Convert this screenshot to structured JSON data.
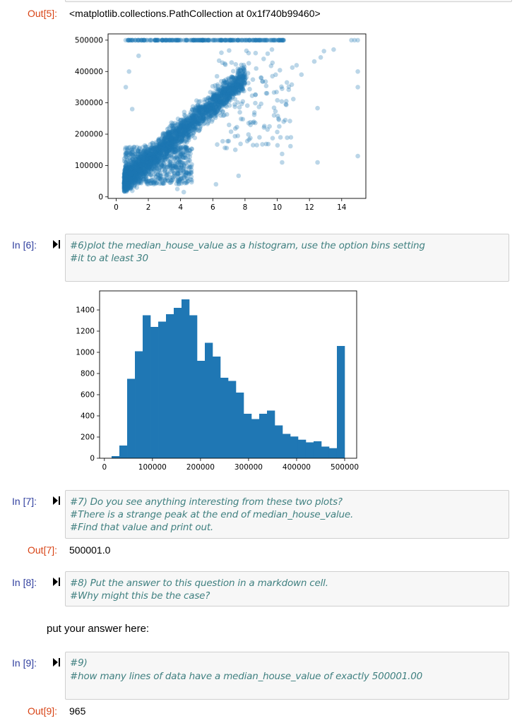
{
  "cells": {
    "out5": {
      "prompt": "Out[5]:",
      "text": "<matplotlib.collections.PathCollection at 0x1f740b99460>"
    },
    "in6": {
      "prompt": "In [6]:",
      "lines": [
        "#6)plot the median_house_value as a histogram, use the option bins setting",
        "#it to at least 30"
      ]
    },
    "in7": {
      "prompt": "In [7]:",
      "lines": [
        "#7) Do you see anything interesting from these two plots?",
        "#There is a strange peak at the end of median_house_value.",
        "#Find that value and print out."
      ]
    },
    "out7": {
      "prompt": "Out[7]:",
      "text": "500001.0"
    },
    "in8": {
      "prompt": "In [8]:",
      "lines": [
        "#8) Put the answer to this question in a markdown cell.",
        "#Why might this be the case?"
      ]
    },
    "markdown": {
      "text": "put your answer here:"
    },
    "in9": {
      "prompt": "In [9]:",
      "lines": [
        "#9)",
        "#how many lines of data have a median_house_value of exactly 500001.00"
      ]
    },
    "out9": {
      "prompt": "Out[9]:",
      "text": "965"
    }
  },
  "colors": {
    "in_prompt": "#303f9f",
    "out_prompt": "#d84315",
    "comment": "#408080",
    "plot_blue": "#1f77b4"
  },
  "chart_data": [
    {
      "type": "scatter",
      "x_ticks": [
        "0",
        "2",
        "4",
        "6",
        "8",
        "10",
        "12",
        "14"
      ],
      "y_ticks": [
        "0",
        "100000",
        "200000",
        "300000",
        "400000",
        "500000"
      ],
      "xlim": [
        -0.5,
        15.5
      ],
      "ylim": [
        -5000,
        520000
      ],
      "grid": false,
      "alpha": 0.3,
      "color": "#1f77b4",
      "outliers": [
        [
          15.0,
          130000
        ],
        [
          15.0,
          350000
        ],
        [
          15.0,
          400000
        ],
        [
          12.5,
          110000
        ],
        [
          12.5,
          283000
        ],
        [
          10.3,
          110000
        ],
        [
          10.3,
          137000
        ],
        [
          10.2,
          190000
        ],
        [
          10.0,
          207000
        ],
        [
          10.4,
          240000
        ],
        [
          10.5,
          245000
        ],
        [
          11.0,
          312000
        ],
        [
          11.5,
          390000
        ],
        [
          12.3,
          432000
        ],
        [
          12.7,
          445000
        ],
        [
          9.4,
          215000
        ],
        [
          9.2,
          226000
        ],
        [
          9.8,
          260000
        ],
        [
          10.3,
          345000
        ],
        [
          10.6,
          365000
        ],
        [
          11.2,
          420000
        ],
        [
          12.9,
          465000
        ],
        [
          13.5,
          470000
        ],
        [
          8.9,
          190000
        ],
        [
          7.6,
          67000
        ],
        [
          7.4,
          150000
        ],
        [
          8.5,
          165000
        ],
        [
          3.8,
          25000
        ],
        [
          4.2,
          15000
        ],
        [
          6.2,
          40000
        ],
        [
          9.0,
          297000
        ],
        [
          9.7,
          385000
        ],
        [
          0.8,
          400000
        ],
        [
          0.6,
          350000
        ],
        [
          1.4,
          450000
        ],
        [
          1.0,
          280000
        ],
        [
          14.6,
          500000
        ],
        [
          14.8,
          500000
        ],
        [
          15.0,
          500000
        ]
      ]
    },
    {
      "type": "bar",
      "bins": 30,
      "bin_start": 14999,
      "bin_width": 16166.73,
      "values": [
        20,
        120,
        750,
        1010,
        1350,
        1240,
        1290,
        1360,
        1420,
        1500,
        1350,
        920,
        1090,
        960,
        760,
        730,
        620,
        420,
        370,
        420,
        450,
        310,
        230,
        205,
        175,
        150,
        160,
        110,
        95,
        1060
      ],
      "x_ticks": [
        "0",
        "100000",
        "200000",
        "300000",
        "400000",
        "500000"
      ],
      "y_ticks": [
        "0",
        "200",
        "400",
        "600",
        "800",
        "1000",
        "1200",
        "1400"
      ],
      "xlim": [
        -10000,
        525000
      ],
      "ylim": [
        0,
        1580
      ],
      "grid": false,
      "color": "#1f77b4"
    }
  ]
}
